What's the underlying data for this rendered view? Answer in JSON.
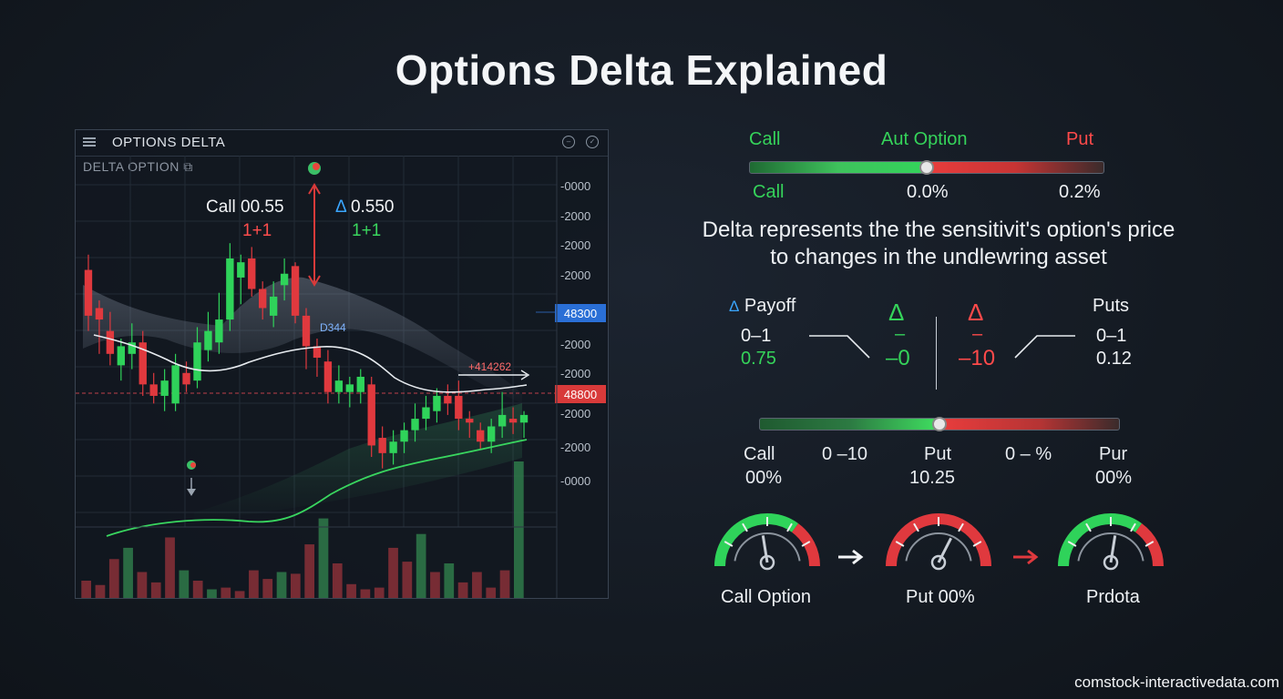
{
  "title": "Options Delta Explained",
  "watermark": "comstock-interactivedata.com",
  "chart_panel": {
    "header_title": "OPTIONS DELTA",
    "sub_label": "DELTA OPTION",
    "sub_icon": "⧉",
    "annotations": {
      "call_label": "Call 00.55",
      "call_sub": "1+1",
      "delta_label": "0.550",
      "delta_sub": "1+1",
      "curve_label": "D344",
      "mid_label": "+414262",
      "delta_symbol": "Δ"
    }
  },
  "chart_data": {
    "type": "candlestick",
    "y_tick_labels": [
      "-0000",
      "-2000",
      "-2000",
      "-2000",
      "-2000",
      "-2000",
      "-2000",
      "-2000",
      "-2000",
      "-0000"
    ],
    "price_tags": [
      {
        "label": "48300",
        "color": "#2a6fd6"
      },
      {
        "label": "48800",
        "color": "#d83a3a"
      }
    ],
    "candles": [
      {
        "o": 0.7,
        "c": 0.82,
        "h": 0.86,
        "l": 0.66,
        "up": false
      },
      {
        "o": 0.72,
        "c": 0.69,
        "h": 0.74,
        "l": 0.6,
        "up": false
      },
      {
        "o": 0.66,
        "c": 0.6,
        "h": 0.71,
        "l": 0.57,
        "up": false
      },
      {
        "o": 0.57,
        "c": 0.62,
        "h": 0.64,
        "l": 0.53,
        "up": true
      },
      {
        "o": 0.6,
        "c": 0.63,
        "h": 0.68,
        "l": 0.56,
        "up": true
      },
      {
        "o": 0.63,
        "c": 0.52,
        "h": 0.66,
        "l": 0.49,
        "up": false
      },
      {
        "o": 0.52,
        "c": 0.49,
        "h": 0.55,
        "l": 0.47,
        "up": false
      },
      {
        "o": 0.49,
        "c": 0.53,
        "h": 0.56,
        "l": 0.45,
        "up": true
      },
      {
        "o": 0.47,
        "c": 0.57,
        "h": 0.6,
        "l": 0.45,
        "up": true
      },
      {
        "o": 0.55,
        "c": 0.52,
        "h": 0.58,
        "l": 0.5,
        "up": false
      },
      {
        "o": 0.53,
        "c": 0.63,
        "h": 0.67,
        "l": 0.51,
        "up": true
      },
      {
        "o": 0.61,
        "c": 0.66,
        "h": 0.71,
        "l": 0.58,
        "up": true
      },
      {
        "o": 0.63,
        "c": 0.69,
        "h": 0.76,
        "l": 0.6,
        "up": true
      },
      {
        "o": 0.69,
        "c": 0.85,
        "h": 0.89,
        "l": 0.66,
        "up": true
      },
      {
        "o": 0.8,
        "c": 0.84,
        "h": 0.86,
        "l": 0.73,
        "up": true
      },
      {
        "o": 0.85,
        "c": 0.77,
        "h": 0.88,
        "l": 0.75,
        "up": false
      },
      {
        "o": 0.77,
        "c": 0.72,
        "h": 0.79,
        "l": 0.69,
        "up": false
      },
      {
        "o": 0.7,
        "c": 0.75,
        "h": 0.79,
        "l": 0.67,
        "up": true
      },
      {
        "o": 0.78,
        "c": 0.81,
        "h": 0.85,
        "l": 0.74,
        "up": true
      },
      {
        "o": 0.83,
        "c": 0.7,
        "h": 0.84,
        "l": 0.68,
        "up": false
      },
      {
        "o": 0.7,
        "c": 0.62,
        "h": 0.72,
        "l": 0.56,
        "up": false
      },
      {
        "o": 0.62,
        "c": 0.59,
        "h": 0.64,
        "l": 0.54,
        "up": false
      },
      {
        "o": 0.58,
        "c": 0.5,
        "h": 0.61,
        "l": 0.47,
        "up": false
      },
      {
        "o": 0.5,
        "c": 0.53,
        "h": 0.57,
        "l": 0.47,
        "up": true
      },
      {
        "o": 0.5,
        "c": 0.52,
        "h": 0.54,
        "l": 0.46,
        "up": true
      },
      {
        "o": 0.5,
        "c": 0.54,
        "h": 0.56,
        "l": 0.47,
        "up": true
      },
      {
        "o": 0.52,
        "c": 0.36,
        "h": 0.54,
        "l": 0.33,
        "up": false
      },
      {
        "o": 0.38,
        "c": 0.34,
        "h": 0.41,
        "l": 0.3,
        "up": false
      },
      {
        "o": 0.34,
        "c": 0.37,
        "h": 0.4,
        "l": 0.31,
        "up": true
      },
      {
        "o": 0.37,
        "c": 0.4,
        "h": 0.42,
        "l": 0.34,
        "up": true
      },
      {
        "o": 0.4,
        "c": 0.43,
        "h": 0.47,
        "l": 0.37,
        "up": true
      },
      {
        "o": 0.43,
        "c": 0.46,
        "h": 0.49,
        "l": 0.4,
        "up": true
      },
      {
        "o": 0.45,
        "c": 0.49,
        "h": 0.51,
        "l": 0.42,
        "up": true
      },
      {
        "o": 0.49,
        "c": 0.47,
        "h": 0.52,
        "l": 0.44,
        "up": false
      },
      {
        "o": 0.49,
        "c": 0.43,
        "h": 0.53,
        "l": 0.4,
        "up": false
      },
      {
        "o": 0.43,
        "c": 0.42,
        "h": 0.45,
        "l": 0.38,
        "up": false
      },
      {
        "o": 0.4,
        "c": 0.37,
        "h": 0.42,
        "l": 0.35,
        "up": false
      },
      {
        "o": 0.37,
        "c": 0.41,
        "h": 0.43,
        "l": 0.34,
        "up": true
      },
      {
        "o": 0.41,
        "c": 0.44,
        "h": 0.5,
        "l": 0.38,
        "up": true
      },
      {
        "o": 0.43,
        "c": 0.42,
        "h": 0.46,
        "l": 0.39,
        "up": false
      },
      {
        "o": 0.42,
        "c": 0.44,
        "h": 0.45,
        "l": 0.38,
        "up": true
      }
    ],
    "volume": [
      {
        "v": 0.2,
        "up": false
      },
      {
        "v": 0.15,
        "up": false
      },
      {
        "v": 0.45,
        "up": false
      },
      {
        "v": 0.58,
        "up": true
      },
      {
        "v": 0.3,
        "up": false
      },
      {
        "v": 0.18,
        "up": false
      },
      {
        "v": 0.7,
        "up": false
      },
      {
        "v": 0.32,
        "up": true
      },
      {
        "v": 0.2,
        "up": false
      },
      {
        "v": 0.1,
        "up": true
      },
      {
        "v": 0.12,
        "up": false
      },
      {
        "v": 0.08,
        "up": false
      },
      {
        "v": 0.32,
        "up": false
      },
      {
        "v": 0.22,
        "up": false
      },
      {
        "v": 0.3,
        "up": true
      },
      {
        "v": 0.28,
        "up": false
      },
      {
        "v": 0.62,
        "up": false
      },
      {
        "v": 0.92,
        "up": true
      },
      {
        "v": 0.4,
        "up": false
      },
      {
        "v": 0.16,
        "up": false
      },
      {
        "v": 0.1,
        "up": false
      },
      {
        "v": 0.12,
        "up": false
      },
      {
        "v": 0.58,
        "up": false
      },
      {
        "v": 0.42,
        "up": false
      },
      {
        "v": 0.74,
        "up": true
      },
      {
        "v": 0.3,
        "up": false
      },
      {
        "v": 0.4,
        "up": true
      },
      {
        "v": 0.18,
        "up": false
      },
      {
        "v": 0.3,
        "up": false
      },
      {
        "v": 0.12,
        "up": false
      },
      {
        "v": 0.32,
        "up": false
      },
      {
        "v": 1.6,
        "up": true
      }
    ]
  },
  "top_slider": {
    "header_left": "Call",
    "header_mid": "Aut Option",
    "header_right": "Put",
    "left_label": "Call",
    "mid_label": "0.0%",
    "right_label": "0.2%",
    "knob_position": 0.5
  },
  "description": "Delta represents the the sensitivit's option's price to changes in the undlewring asset",
  "payoff": {
    "left_title": "Payoff",
    "left_line1": "0–1",
    "left_line2": "0.75",
    "green_delta": "Δ",
    "green_mid": "–",
    "green_value": "–0",
    "red_delta": "Δ",
    "red_mid": "–",
    "red_value": "–10",
    "right_title": "Puts",
    "right_line1": "0–1",
    "right_line2": "0.12"
  },
  "bottom_slider": {
    "knob_position": 0.5,
    "labels": [
      {
        "top": "Call",
        "bottom": "00%"
      },
      {
        "top": "0 –10",
        "bottom": ""
      },
      {
        "top": "Put",
        "bottom": "10.25"
      },
      {
        "top": "0 – %",
        "bottom": ""
      },
      {
        "top": "Pur",
        "bottom": "00%"
      }
    ]
  },
  "gauges": [
    {
      "label": "Call Option",
      "fill": 0.45,
      "theme": "green"
    },
    {
      "label": "Put 00%",
      "fill": 0.65,
      "theme": "red"
    },
    {
      "label": "Prdota",
      "fill": 0.55,
      "theme": "green"
    }
  ],
  "colors": {
    "green": "#2fd35a",
    "red": "#e0393e",
    "blue_tag": "#2a6fd6",
    "red_tag": "#d83a3a"
  }
}
